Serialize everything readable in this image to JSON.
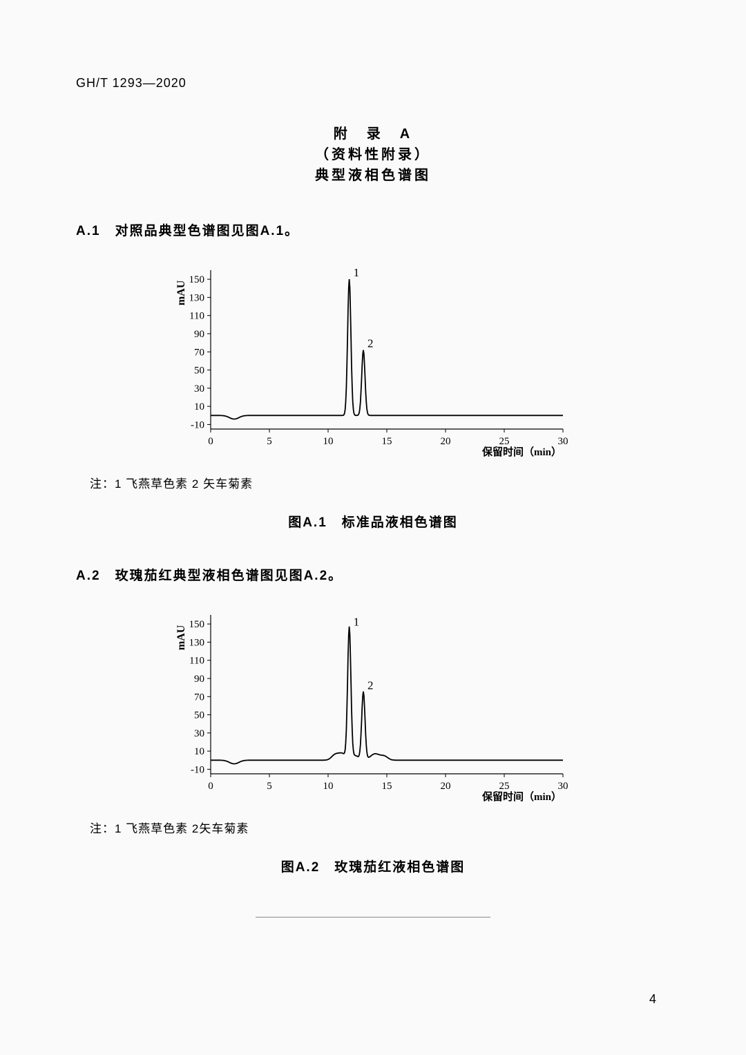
{
  "doc_id": "GH/T 1293—2020",
  "appendix": {
    "line1": "附　录　A",
    "line2": "（资料性附录）",
    "line3": "典型液相色谱图"
  },
  "section_a1": "A.1　对照品典型色谱图见图A.1。",
  "section_a2": "A.2　玫瑰茄红典型液相色谱图见图A.2。",
  "note1": "注：1 飞燕草色素 2 矢车菊素",
  "note2": "注：1 飞燕草色素 2矢车菊素",
  "caption1": "图A.1　标准品液相色谱图",
  "caption2": "图A.2　玫瑰茄红液相色谱图",
  "page_number": "4",
  "chart1": {
    "type": "chromatogram",
    "y_label": "mAU",
    "x_label": "保留时间（min）",
    "y_ticks": [
      -10,
      10,
      30,
      50,
      70,
      90,
      110,
      130,
      150
    ],
    "x_ticks": [
      0,
      5,
      10,
      15,
      20,
      25,
      30
    ],
    "xlim": [
      0,
      30
    ],
    "ylim": [
      -15,
      160
    ],
    "baseline_y": 0,
    "peaks": [
      {
        "label": "1",
        "x": 11.8,
        "height": 150,
        "width": 0.35
      },
      {
        "label": "2",
        "x": 13.0,
        "height": 72,
        "width": 0.35
      }
    ],
    "small_dip": {
      "x": 2.0,
      "depth": -4,
      "width": 0.4
    },
    "line_color": "#000000",
    "line_width": 1.8,
    "tick_color": "#000000",
    "tick_fontsize": 15,
    "background": "#fafafa"
  },
  "chart2": {
    "type": "chromatogram",
    "y_label": "mAU",
    "x_label": "保留时间（min）",
    "y_ticks": [
      -10,
      10,
      30,
      50,
      70,
      90,
      110,
      130,
      150
    ],
    "x_ticks": [
      0,
      5,
      10,
      15,
      20,
      25,
      30
    ],
    "xlim": [
      0,
      30
    ],
    "ylim": [
      -15,
      160
    ],
    "baseline_y": 0,
    "peaks": [
      {
        "label": "1",
        "x": 11.8,
        "height": 145,
        "width": 0.35
      },
      {
        "label": "2",
        "x": 13.0,
        "height": 75,
        "width": 0.35
      }
    ],
    "minor_bumps": [
      {
        "x": 10.6,
        "height": 6,
        "width": 0.3
      },
      {
        "x": 11.2,
        "height": 7,
        "width": 0.3
      },
      {
        "x": 12.3,
        "height": 5,
        "width": 0.3
      },
      {
        "x": 14.0,
        "height": 7,
        "width": 0.4
      },
      {
        "x": 14.8,
        "height": 4,
        "width": 0.3
      }
    ],
    "small_dip": {
      "x": 2.0,
      "depth": -4,
      "width": 0.4
    },
    "line_color": "#000000",
    "line_width": 1.8,
    "tick_color": "#000000",
    "tick_fontsize": 15,
    "background": "#fafafa"
  }
}
